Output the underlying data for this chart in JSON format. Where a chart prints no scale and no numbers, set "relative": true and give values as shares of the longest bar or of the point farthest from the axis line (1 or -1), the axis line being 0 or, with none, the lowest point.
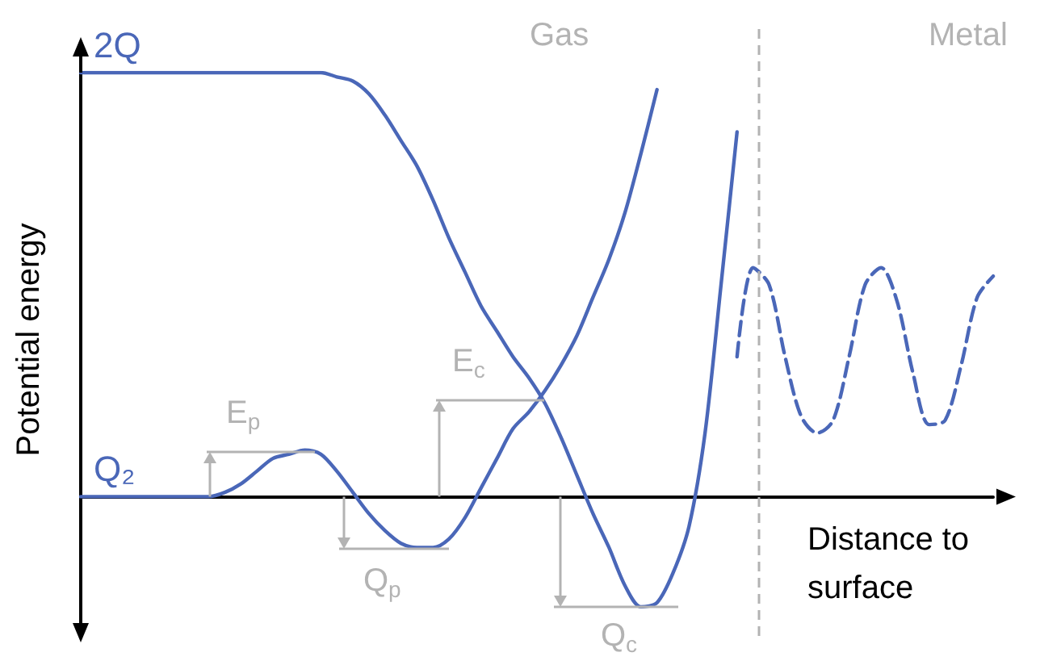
{
  "chart_data": {
    "type": "line",
    "relative": true,
    "marker": "none",
    "ylabel": "Potential energy",
    "xlabel": "Distance to surface",
    "categories": [
      null,
      null,
      null,
      null,
      null,
      null,
      null,
      null,
      null,
      null,
      null,
      null,
      null,
      null,
      null,
      null,
      null,
      null,
      null,
      null,
      null,
      null,
      null,
      null,
      null,
      null,
      null,
      null,
      null,
      null,
      null,
      null,
      null,
      null,
      null,
      null,
      null,
      null,
      null,
      null,
      null,
      null,
      null,
      null,
      null,
      null,
      null,
      null,
      null,
      null,
      null,
      null,
      null,
      null,
      null,
      null,
      null,
      null
    ],
    "series": [
      {
        "name": "Q₂",
        "color": "#4a67b8",
        "values": [
          0,
          0,
          0,
          0,
          0,
          0,
          0,
          0,
          0,
          0.01,
          0.03,
          0.06,
          0.09,
          0.1,
          0.11,
          0.1,
          0.06,
          0.01,
          -0.04,
          -0.08,
          -0.11,
          -0.12,
          -0.12,
          -0.1,
          -0.05,
          0.02,
          0.09,
          0.16,
          0.2,
          0.25,
          0.31,
          0.38,
          0.47,
          0.56,
          0.67,
          0.81,
          0.96,
          null,
          null,
          null,
          null,
          null,
          null,
          null,
          null,
          null,
          null,
          null,
          null,
          null,
          null,
          null,
          null,
          null,
          null,
          null,
          null,
          null
        ]
      },
      {
        "name": "2Q",
        "color": "#4a67b8",
        "values": [
          1,
          1,
          1,
          1,
          1,
          1,
          1,
          1,
          1,
          1,
          1,
          1,
          1,
          1,
          1,
          1,
          0.99,
          0.98,
          0.95,
          0.9,
          0.84,
          0.78,
          0.7,
          0.61,
          0.53,
          0.45,
          0.39,
          0.33,
          0.28,
          0.22,
          0.14,
          0.05,
          -0.04,
          -0.12,
          -0.21,
          -0.26,
          -0.25,
          -0.18,
          -0.07,
          0.15,
          0.5,
          0.86,
          null,
          null,
          null,
          null,
          null,
          null,
          null,
          null,
          null,
          null,
          null,
          null,
          null,
          null,
          null,
          null
        ]
      },
      {
        "color": "#4a67b8",
        "line_style": "dashed",
        "values": [
          null,
          null,
          null,
          null,
          null,
          null,
          null,
          null,
          null,
          null,
          null,
          null,
          null,
          null,
          null,
          null,
          null,
          null,
          null,
          null,
          null,
          null,
          null,
          null,
          null,
          null,
          null,
          null,
          null,
          null,
          null,
          null,
          null,
          null,
          null,
          null,
          null,
          null,
          null,
          null,
          null,
          0.33,
          0.54,
          0.5,
          0.33,
          0.19,
          0.15,
          0.18,
          0.33,
          0.5,
          0.54,
          0.46,
          0.29,
          0.17,
          0.18,
          0.31,
          0.47,
          0.52
        ]
      }
    ],
    "annotations": [
      "Gas",
      "Metal",
      "E$_{p}$",
      "Q$_{p}$",
      "E$_{c}$",
      "Q$_{c}$"
    ]
  }
}
